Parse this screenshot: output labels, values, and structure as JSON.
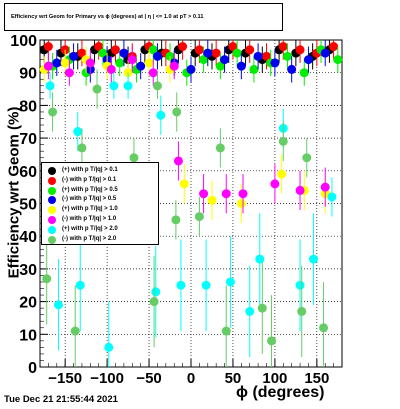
{
  "title": "Efficiency wrt Geom for Primary vs ϕ (degrees) at | η | <= 1.0 at pT > 0.11",
  "timestamp": "Tue Dec 21 21:55:44 2021",
  "chart_data": {
    "type": "scatter",
    "xlabel": "ϕ (degrees)",
    "ylabel": "Efficiency wrt Geom (%)",
    "xlim": [
      -180,
      180
    ],
    "ylim": [
      0,
      100
    ],
    "xticks": [
      -150,
      -100,
      -50,
      0,
      50,
      100,
      150
    ],
    "yticks": [
      0,
      10,
      20,
      30,
      40,
      50,
      60,
      70,
      80,
      90,
      100
    ],
    "grid": true,
    "legend_position": "middle-left",
    "series": [
      {
        "name": "(+) with p T/|q| > 0.1",
        "color": "#000000",
        "x": [
          -175,
          -155,
          -135,
          -115,
          -95,
          -75,
          -55,
          -35,
          -15,
          5,
          25,
          45,
          65,
          85,
          105,
          125,
          145,
          165
        ],
        "y": [
          97,
          96,
          95,
          97,
          96,
          94,
          97,
          96,
          97,
          96,
          95,
          97,
          96,
          94,
          97,
          96,
          95,
          97
        ]
      },
      {
        "name": "(-) with p T/|q| > 0.1",
        "color": "#ff0000",
        "x": [
          -170,
          -150,
          -130,
          -110,
          -90,
          -70,
          -50,
          -30,
          -10,
          10,
          30,
          50,
          70,
          90,
          110,
          130,
          150,
          170
        ],
        "y": [
          98,
          97,
          96,
          98,
          97,
          95,
          98,
          96,
          98,
          97,
          96,
          98,
          97,
          95,
          98,
          97,
          96,
          98
        ]
      },
      {
        "name": "(+) with p T/|q| > 0.5",
        "color": "#00ee00",
        "x": [
          -165,
          -145,
          -125,
          -105,
          -85,
          -65,
          -45,
          -25,
          -5,
          15,
          35,
          55,
          75,
          95,
          115,
          135,
          155,
          175
        ],
        "y": [
          92,
          94,
          90,
          96,
          93,
          91,
          97,
          95,
          90,
          94,
          92,
          96,
          91,
          93,
          95,
          90,
          97,
          94
        ]
      },
      {
        "name": "(-) with p T/|q| > 0.5",
        "color": "#0000ee",
        "x": [
          -160,
          -140,
          -120,
          -100,
          -80,
          -60,
          -40,
          -20,
          0,
          20,
          40,
          60,
          80,
          100,
          120,
          140,
          160
        ],
        "y": [
          93,
          95,
          91,
          94,
          96,
          92,
          95,
          93,
          91,
          96,
          94,
          92,
          95,
          93,
          91,
          94,
          96
        ]
      },
      {
        "name": "(+) with p T/|q| > 1.0",
        "color": "#ffff00",
        "x": [
          -175,
          -150,
          -125,
          -100,
          -75,
          -50,
          -25,
          -8,
          25,
          60,
          108,
          135,
          160
        ],
        "y": [
          91,
          93,
          94,
          92,
          90,
          93,
          91,
          56,
          51,
          50,
          59,
          54,
          53
        ]
      },
      {
        "name": "(-) with p T/|q| > 1.0",
        "color": "#ff00ff",
        "x": [
          -170,
          -145,
          -120,
          -95,
          -70,
          -45,
          -20,
          -15,
          15,
          42,
          62,
          100,
          130,
          160
        ],
        "y": [
          92,
          90,
          93,
          91,
          94,
          90,
          92,
          63,
          53,
          53,
          53,
          56,
          54,
          55
        ]
      },
      {
        "name": "(+) with p T/|q| > 2.0",
        "color": "#00ffff",
        "x": [
          -168,
          -158,
          -135,
          -132,
          -98,
          -92,
          -75,
          -42,
          -36,
          -12,
          18,
          47,
          70,
          82,
          110,
          130,
          146,
          168
        ],
        "y": [
          86,
          19,
          72,
          25,
          6,
          86,
          86,
          23,
          77,
          25,
          25,
          26,
          17,
          33,
          73,
          25,
          33,
          52
        ]
      },
      {
        "name": "(-) with p T/|q| > 2.0",
        "color": "#66cc66",
        "x": [
          -172,
          -165,
          -138,
          -130,
          -112,
          -68,
          -44,
          -40,
          -18,
          -17,
          10,
          35,
          42,
          85,
          96,
          110,
          132,
          138,
          158
        ],
        "y": [
          27,
          78,
          11,
          67,
          85,
          64,
          20,
          86,
          45,
          78,
          46,
          67,
          11,
          18,
          8,
          69,
          17,
          64,
          12
        ]
      }
    ]
  }
}
